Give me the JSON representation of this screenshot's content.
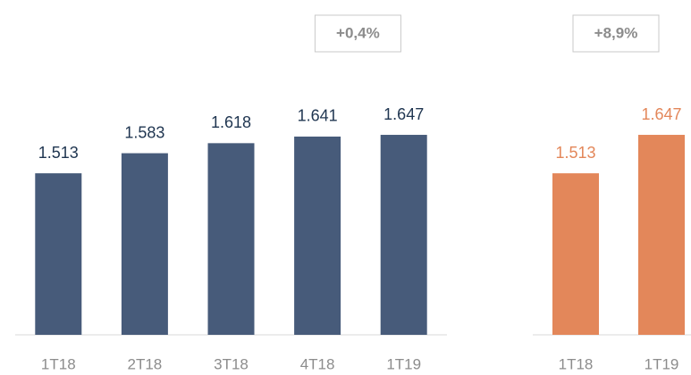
{
  "chart_data": [
    {
      "type": "bar",
      "annotation": "+0,4%",
      "categories": [
        "1T18",
        "2T18",
        "3T18",
        "4T18",
        "1T19"
      ],
      "values": [
        1513,
        1583,
        1618,
        1641,
        1647
      ],
      "value_labels": [
        "1.513",
        "1.583",
        "1.618",
        "1.641",
        "1.647"
      ],
      "color": "#475b7a",
      "label_color": "#1f3550",
      "ylim": [
        950,
        1700
      ]
    },
    {
      "type": "bar",
      "annotation": "+8,9%",
      "categories": [
        "1T18",
        "1T19"
      ],
      "values": [
        1513,
        1647
      ],
      "value_labels": [
        "1.513",
        "1.647"
      ],
      "color": "#e3875a",
      "label_color": "#e3875a",
      "ylim": [
        950,
        1700
      ]
    }
  ]
}
